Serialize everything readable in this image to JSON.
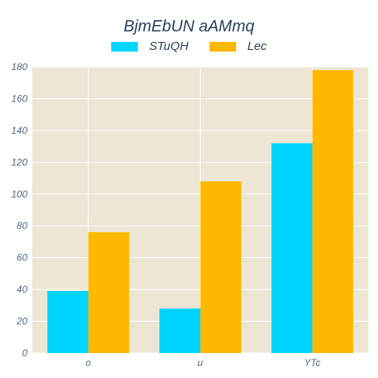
{
  "chart_data": {
    "type": "bar",
    "title": "BjmEbUN aAMmq",
    "categories": [
      "o",
      "u",
      "YTc"
    ],
    "series": [
      {
        "name": "STuQH",
        "values": [
          39,
          28,
          132
        ],
        "color": "#00d5ff"
      },
      {
        "name": "Lec",
        "values": [
          76,
          108,
          178
        ],
        "color": "#ffb800"
      }
    ],
    "ylim": [
      0,
      180
    ],
    "yticks": [
      0,
      20,
      40,
      60,
      80,
      100,
      120,
      140,
      160,
      180
    ],
    "legend_position": "top-center",
    "grid": true,
    "plot_background": "#eee6d4"
  }
}
